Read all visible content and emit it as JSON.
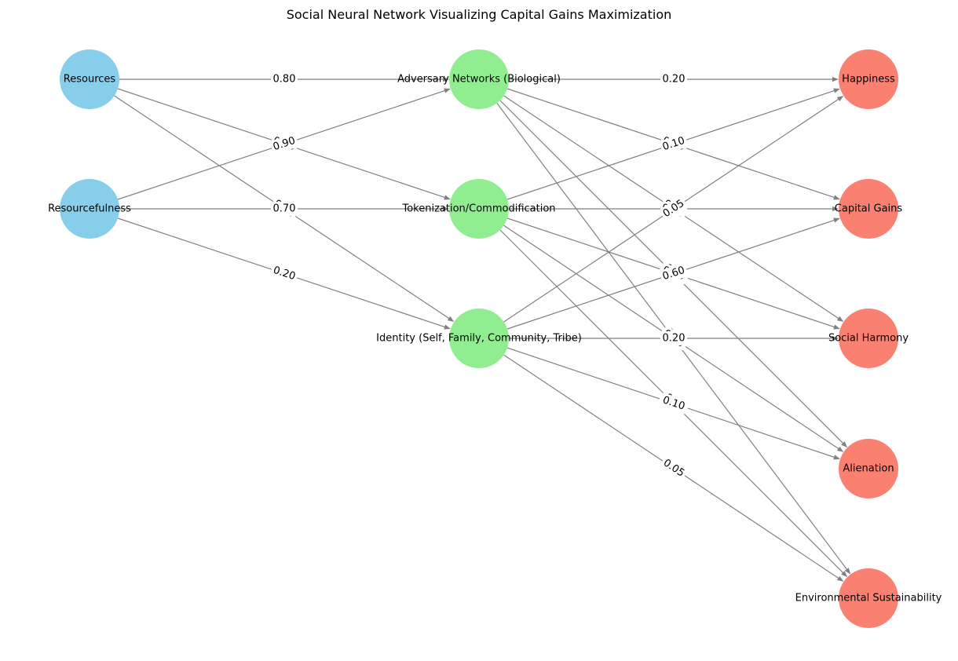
{
  "title": "Social Neural Network Visualizing Capital Gains Maximization",
  "colors": {
    "input": "#87CEEB",
    "hidden": "#90EE90",
    "output": "#FA8072",
    "edge": "#808080"
  },
  "nodes": [
    {
      "id": "resources",
      "label": "Resources",
      "layer": "input"
    },
    {
      "id": "resourcefulness",
      "label": "Resourcefulness",
      "layer": "input"
    },
    {
      "id": "adversary",
      "label": "Adversary Networks (Biological)",
      "layer": "hidden"
    },
    {
      "id": "tokenization",
      "label": "Tokenization/Commodification",
      "layer": "hidden"
    },
    {
      "id": "identity",
      "label": "Identity (Self, Family, Community, Tribe)",
      "layer": "hidden"
    },
    {
      "id": "happiness",
      "label": "Happiness",
      "layer": "output"
    },
    {
      "id": "capital_gains",
      "label": "Capital Gains",
      "layer": "output"
    },
    {
      "id": "social_harmony",
      "label": "Social Harmony",
      "layer": "output"
    },
    {
      "id": "alienation",
      "label": "Alienation",
      "layer": "output"
    },
    {
      "id": "env_sustainability",
      "label": "Environmental Sustainability",
      "layer": "output"
    }
  ],
  "edges": [
    {
      "source": "resources",
      "target": "adversary",
      "weight": "0.80"
    },
    {
      "source": "resources",
      "target": "tokenization",
      "weight": "0.90"
    },
    {
      "source": "resources",
      "target": "identity",
      "weight": "0.70"
    },
    {
      "source": "resourcefulness",
      "target": "adversary",
      "weight": "0.90"
    },
    {
      "source": "resourcefulness",
      "target": "tokenization",
      "weight": "0.70"
    },
    {
      "source": "resourcefulness",
      "target": "identity",
      "weight": "0.20"
    },
    {
      "source": "adversary",
      "target": "happiness",
      "weight": "0.20"
    },
    {
      "source": "adversary",
      "target": "capital_gains",
      "weight": "0.10"
    },
    {
      "source": "adversary",
      "target": "social_harmony",
      "weight": "0.05"
    },
    {
      "source": "adversary",
      "target": "alienation",
      "weight": "0.60"
    },
    {
      "source": "adversary",
      "target": "env_sustainability",
      "weight": "0.20"
    },
    {
      "source": "tokenization",
      "target": "happiness",
      "weight": "0.10"
    },
    {
      "source": "tokenization",
      "target": "capital_gains",
      "weight": "0.05"
    },
    {
      "source": "tokenization",
      "target": "social_harmony",
      "weight": "0.60"
    },
    {
      "source": "tokenization",
      "target": "alienation",
      "weight": "0.20"
    },
    {
      "source": "tokenization",
      "target": "env_sustainability",
      "weight": "0.10"
    },
    {
      "source": "identity",
      "target": "happiness",
      "weight": "0.05"
    },
    {
      "source": "identity",
      "target": "capital_gains",
      "weight": "0.60"
    },
    {
      "source": "identity",
      "target": "social_harmony",
      "weight": "0.20"
    },
    {
      "source": "identity",
      "target": "alienation",
      "weight": "0.10"
    },
    {
      "source": "identity",
      "target": "env_sustainability",
      "weight": "0.05"
    }
  ]
}
